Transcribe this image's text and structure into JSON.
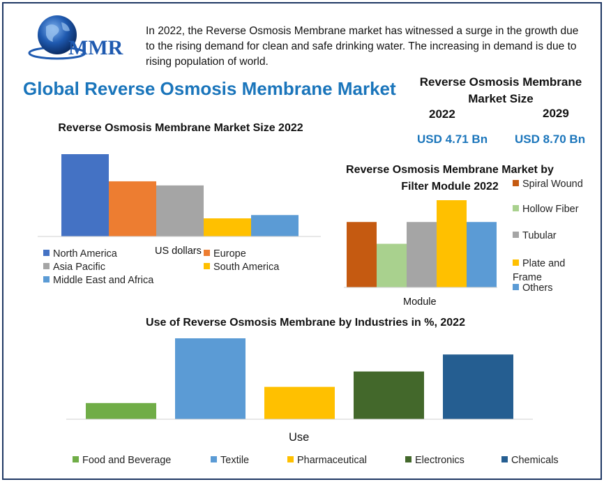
{
  "logo": {
    "text": "MMR",
    "icon": "globe-icon"
  },
  "intro": "In 2022, the Reverse Osmosis Membrane market has witnessed a surge in the growth due to the rising demand for clean and safe drinking water. The increasing in demand is due to rising population of world.",
  "main_title": "Global Reverse Osmosis Membrane Market",
  "market_size": {
    "title": "Reverse Osmosis Membrane Market Size",
    "year_start": "2022",
    "year_end": "2029",
    "value_start": "USD 4.71 Bn",
    "value_end": "USD 8.70 Bn"
  },
  "chart_data": [
    {
      "type": "bar",
      "title": "Reverse Osmosis Membrane Market Size 2022",
      "xlabel": "US dollars",
      "ylabel": "",
      "categories": [
        "North America",
        "Europe",
        "Asia Pacific",
        "South America",
        "Middle East and Africa"
      ],
      "values": [
        100,
        67,
        62,
        22,
        26
      ],
      "colors": [
        "#4472c4",
        "#ed7d31",
        "#a5a5a5",
        "#ffc000",
        "#5b9bd5"
      ],
      "ylim": [
        0,
        100
      ],
      "grid": false,
      "legend": "bottom"
    },
    {
      "type": "bar",
      "title": "Reverse Osmosis Membrane Market by Filter Module 2022",
      "xlabel": "Module",
      "ylabel": "",
      "categories": [
        "Spiral Wound",
        "Hollow Fiber",
        "Tubular",
        "Plate and Frame",
        "Others"
      ],
      "values": [
        75,
        50,
        75,
        100,
        75
      ],
      "colors": [
        "#c55a11",
        "#a9d18e",
        "#a5a5a5",
        "#ffc000",
        "#5b9bd5"
      ],
      "ylim": [
        0,
        100
      ],
      "grid": false,
      "legend": "right"
    },
    {
      "type": "bar",
      "title": "Use of Reverse Osmosis Membrane by Industries in %, 2022",
      "xlabel": "Use",
      "ylabel": "",
      "categories": [
        "Food and  Beverage",
        "Textile",
        "Pharmaceutical",
        "Electronics",
        "Chemicals"
      ],
      "values": [
        20,
        100,
        40,
        59,
        80
      ],
      "colors": [
        "#70ad47",
        "#5b9bd5",
        "#ffc000",
        "#43682b",
        "#255e91"
      ],
      "ylim": [
        0,
        100
      ],
      "grid": false,
      "legend": "bottom"
    }
  ]
}
